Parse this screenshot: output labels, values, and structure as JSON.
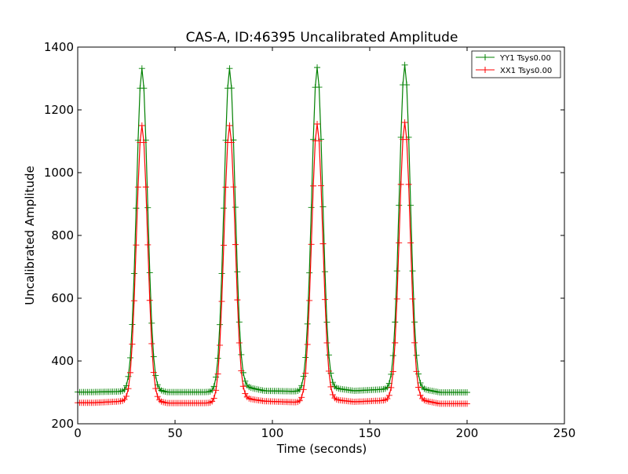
{
  "chart_data": {
    "type": "line",
    "title": "CAS-A, ID:46395 Uncalibrated Amplitude",
    "xlabel": "Time (seconds)",
    "ylabel": "Uncalibrated Amplitude",
    "xlim": [
      0,
      250
    ],
    "ylim": [
      200,
      1400
    ],
    "xticks": [
      0,
      50,
      100,
      150,
      200,
      250
    ],
    "yticks": [
      200,
      400,
      600,
      800,
      1000,
      1200,
      1400
    ],
    "xtick_labels": [
      "0",
      "50",
      "100",
      "150",
      "200",
      "250"
    ],
    "ytick_labels": [
      "200",
      "400",
      "600",
      "800",
      "1000",
      "1200",
      "1400"
    ],
    "grid": false,
    "legend_position": "top-right",
    "marker": "plus",
    "series": [
      {
        "name": "YY1 Tsys0.00",
        "color": "#008000",
        "x_start": 0,
        "x_end": 200,
        "x_step": 1,
        "baseline": [
          [
            0,
            301
          ],
          [
            8,
            301
          ],
          [
            24,
            303
          ],
          [
            38,
            310
          ],
          [
            46,
            301
          ],
          [
            70,
            301
          ],
          [
            86,
            318
          ],
          [
            96,
            305
          ],
          [
            114,
            303
          ],
          [
            130,
            315
          ],
          [
            142,
            305
          ],
          [
            164,
            312
          ],
          [
            176,
            312
          ],
          [
            186,
            300
          ],
          [
            200,
            300
          ]
        ],
        "peaks": [
          {
            "center": 33,
            "height": 1332,
            "halfwidth": 4.5
          },
          {
            "center": 78,
            "height": 1332,
            "halfwidth": 4.5
          },
          {
            "center": 123,
            "height": 1335,
            "halfwidth": 4.5
          },
          {
            "center": 168,
            "height": 1343,
            "halfwidth": 4.5
          }
        ]
      },
      {
        "name": "XX1 Tsys0.00",
        "color": "#ff0000",
        "x_start": 0,
        "x_end": 200,
        "x_step": 1,
        "baseline": [
          [
            0,
            267
          ],
          [
            8,
            267
          ],
          [
            24,
            272
          ],
          [
            38,
            275
          ],
          [
            46,
            266
          ],
          [
            70,
            266
          ],
          [
            86,
            281
          ],
          [
            96,
            272
          ],
          [
            114,
            268
          ],
          [
            130,
            278
          ],
          [
            142,
            270
          ],
          [
            164,
            276
          ],
          [
            176,
            276
          ],
          [
            186,
            264
          ],
          [
            200,
            264
          ]
        ],
        "peaks": [
          {
            "center": 33,
            "height": 1150,
            "halfwidth": 4.5
          },
          {
            "center": 78,
            "height": 1150,
            "halfwidth": 4.5
          },
          {
            "center": 123,
            "height": 1155,
            "halfwidth": 4.5
          },
          {
            "center": 168,
            "height": 1160,
            "halfwidth": 4.5
          }
        ]
      }
    ]
  }
}
